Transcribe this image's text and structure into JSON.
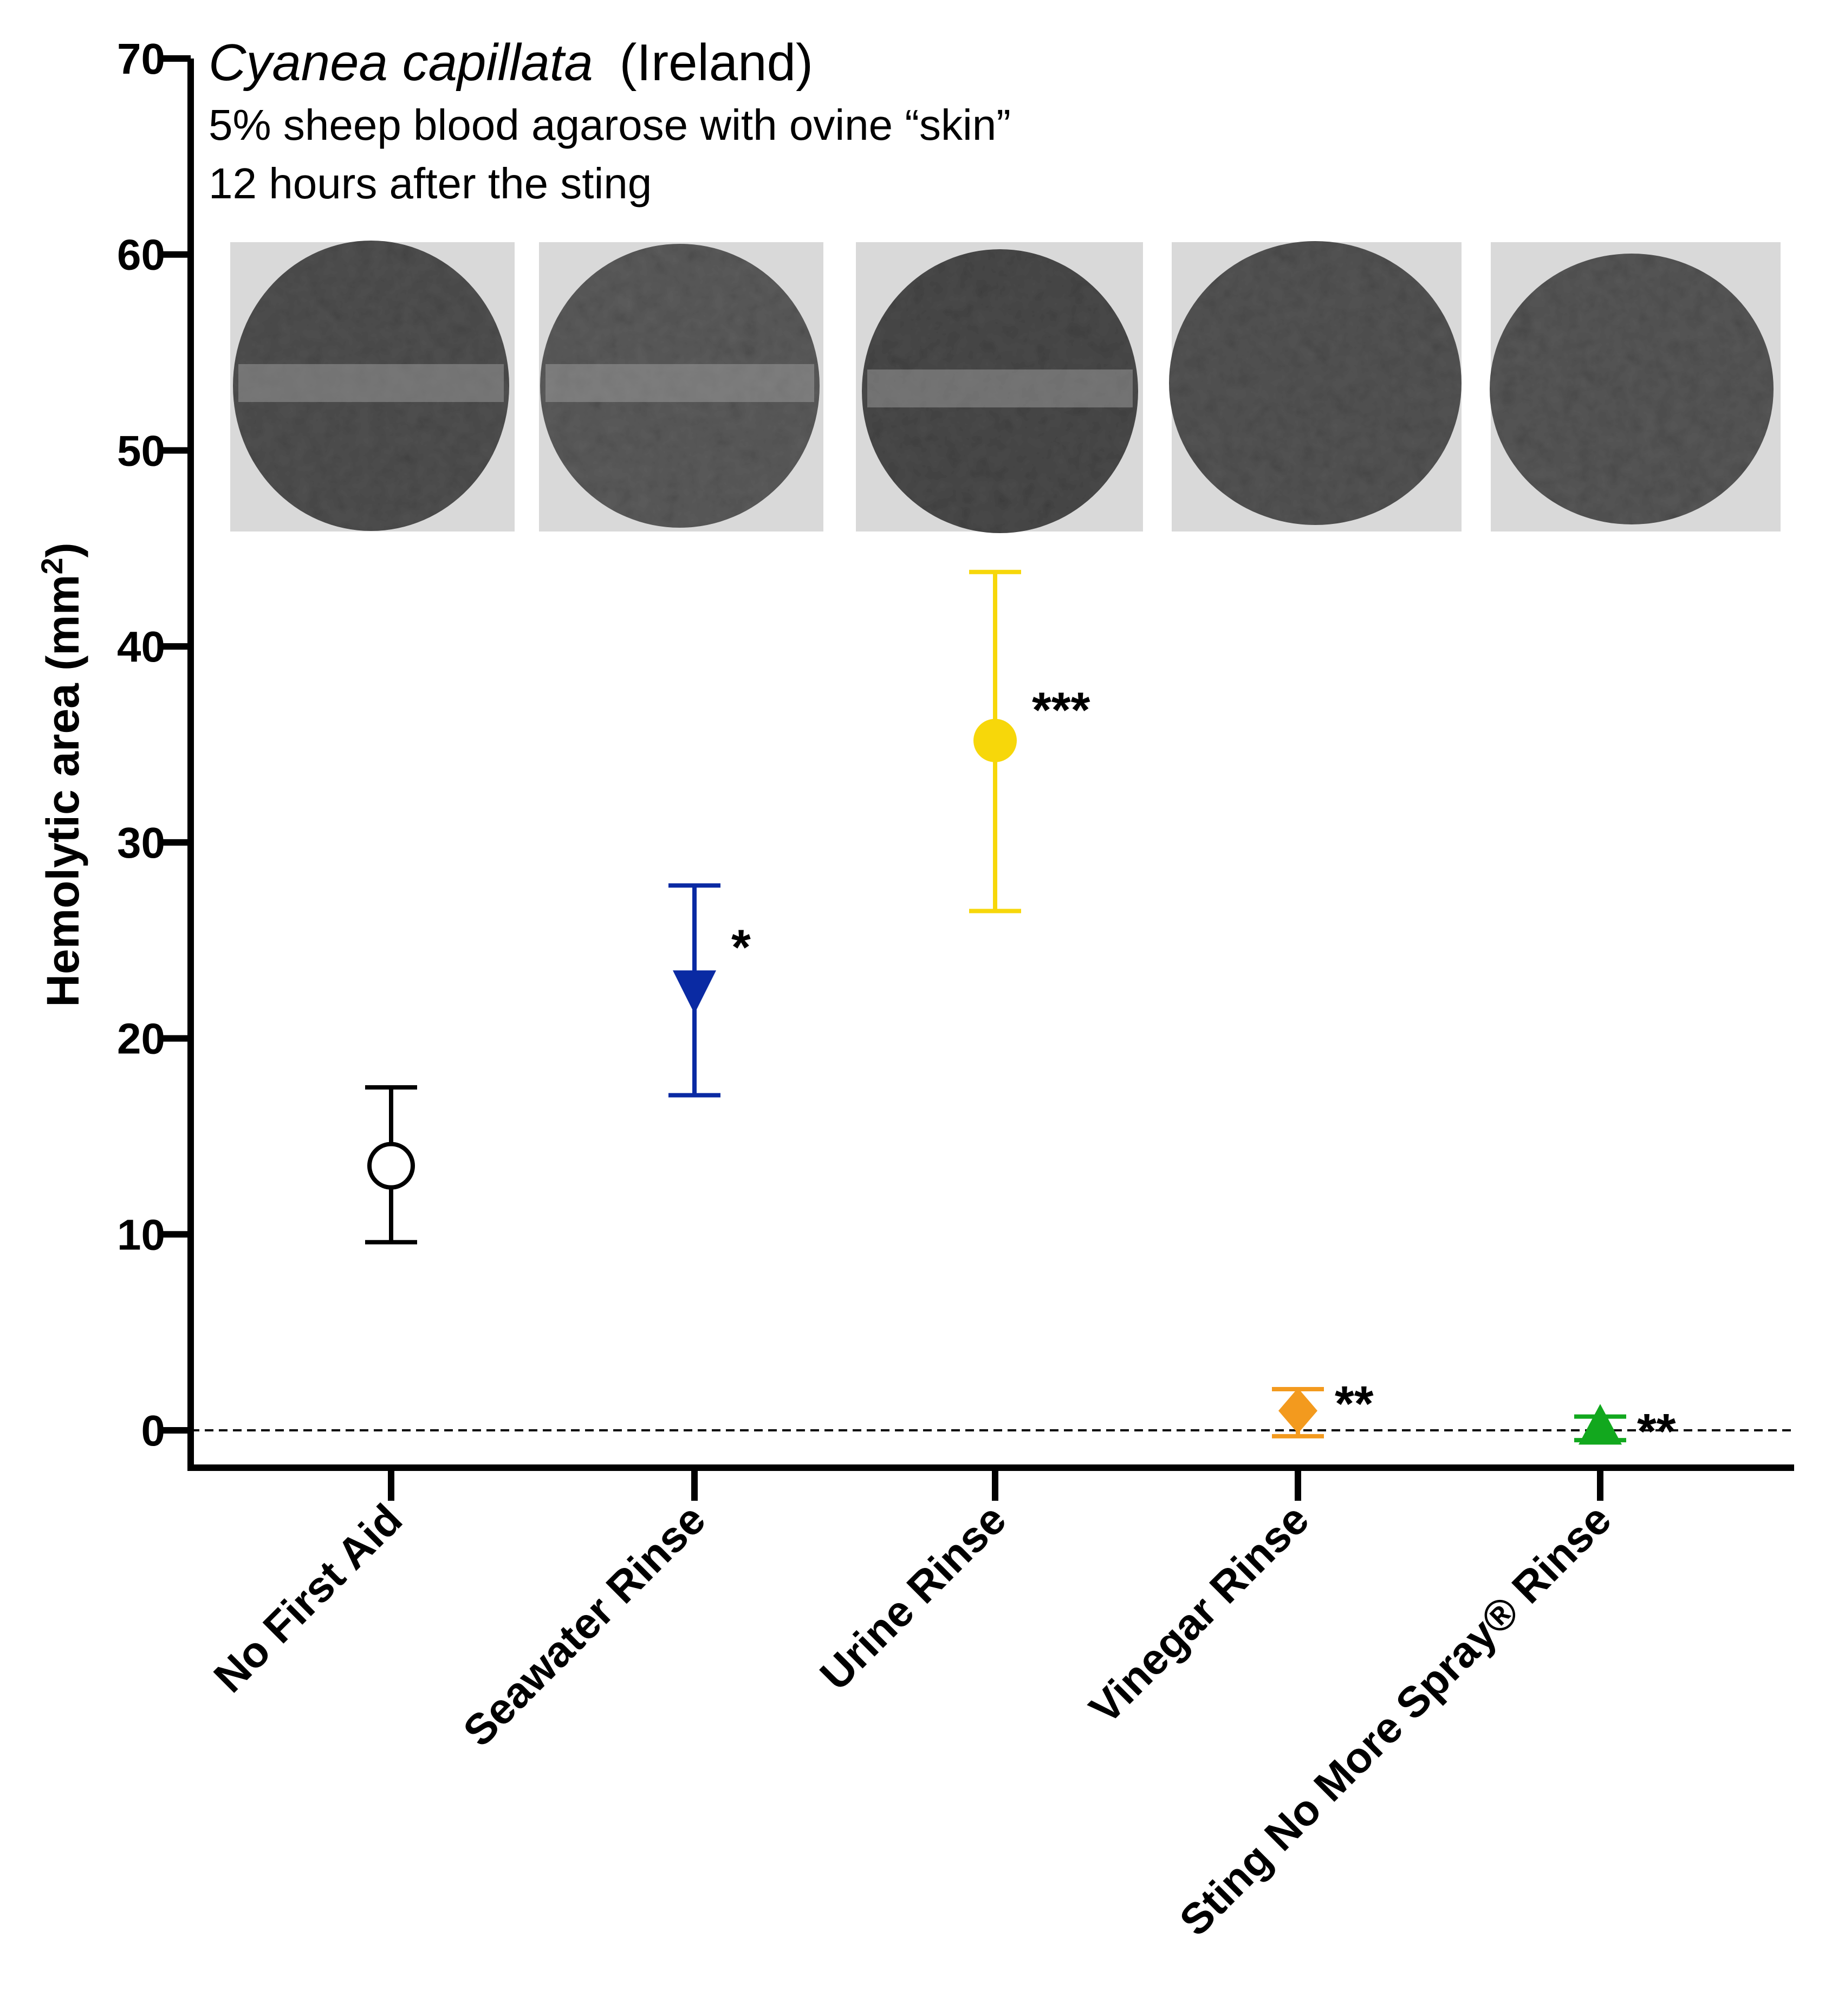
{
  "chart_data": {
    "type": "scatter",
    "title": {
      "species": "Cyanea capillata",
      "location": "(Ireland)",
      "line2": "5% sheep blood agarose with ovine “skin”",
      "line3": "12 hours after the sting"
    },
    "ylabel": "Hemolytic area (mm",
    "ylabel_sup": "2",
    "ylabel_close": ")",
    "xlabel": "",
    "ylim": [
      0,
      70
    ],
    "yticks": [
      0,
      10,
      20,
      30,
      40,
      50,
      60,
      70
    ],
    "reference_line": 0,
    "categories": [
      "No First Aid",
      "Seawater Rinse",
      "Urine Rinse",
      "Vinegar Rinse",
      "Sting No More Spray® Rinse"
    ],
    "series": [
      {
        "name": "No First Aid",
        "value": 13.5,
        "lower": 9.6,
        "upper": 17.5,
        "marker": "open-circle",
        "color": "#000000",
        "significance": ""
      },
      {
        "name": "Seawater Rinse",
        "value": 22.5,
        "lower": 17.1,
        "upper": 27.8,
        "marker": "down-triangle",
        "color": "#0a2aa3",
        "significance": "*"
      },
      {
        "name": "Urine Rinse",
        "value": 35.2,
        "lower": 26.5,
        "upper": 43.8,
        "marker": "filled-circle",
        "color": "#f7d70a",
        "significance": "***"
      },
      {
        "name": "Vinegar Rinse",
        "value": 1.0,
        "lower": -0.3,
        "upper": 2.1,
        "marker": "diamond",
        "color": "#f39a1e",
        "significance": "**"
      },
      {
        "name": "Sting No More Spray® Rinse",
        "value": 0.1,
        "lower": -0.5,
        "upper": 0.7,
        "marker": "up-triangle",
        "color": "#12a81e",
        "significance": "**"
      }
    ],
    "images": [
      {
        "label": "No First Aid agarose plate",
        "icon": "agarose-plate-icon"
      },
      {
        "label": "Seawater Rinse agarose plate",
        "icon": "agarose-plate-icon"
      },
      {
        "label": "Urine Rinse agarose plate",
        "icon": "agarose-plate-icon"
      },
      {
        "label": "Vinegar Rinse agarose plate",
        "icon": "agarose-plate-icon"
      },
      {
        "label": "Sting No More Spray Rinse agarose plate",
        "icon": "agarose-plate-icon"
      }
    ]
  }
}
